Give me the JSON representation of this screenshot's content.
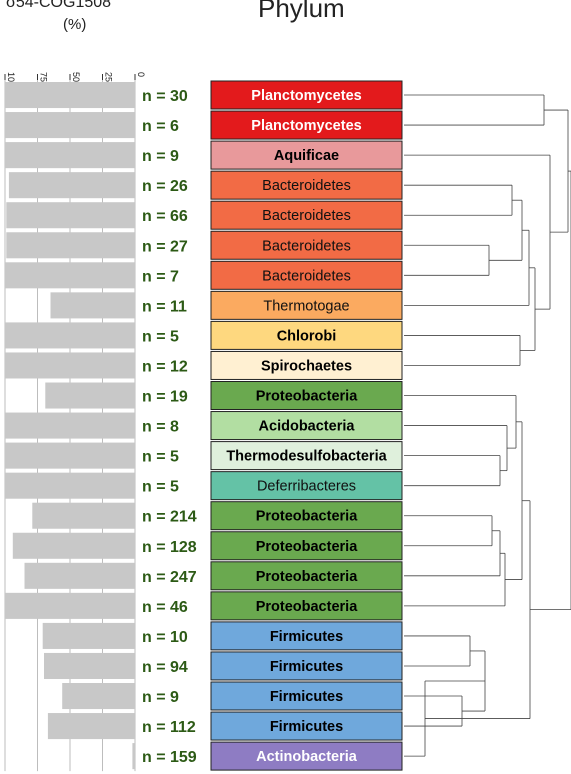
{
  "chart_data": {
    "type": "bar",
    "orientation": "horizontal",
    "direction": "right-to-left",
    "title": "Phylum",
    "axis_label_line1": "σ54-COG1508",
    "axis_label_line2": "(%)",
    "ticks": [
      "100",
      "75",
      "50",
      "25",
      "0"
    ],
    "tick_values": [
      100,
      75,
      50,
      25,
      0
    ],
    "xlim": [
      0,
      100
    ],
    "rows": [
      {
        "n": "n = 30",
        "phylum": "Planctomycetes",
        "value": 100,
        "color": "#e31a1c",
        "text_color": "#ffffff",
        "bold": true
      },
      {
        "n": "n = 6",
        "phylum": "Planctomycetes",
        "value": 100,
        "color": "#e31a1c",
        "text_color": "#ffffff",
        "bold": true
      },
      {
        "n": "n = 9",
        "phylum": "Aquificae",
        "value": 100,
        "color": "#e8999b",
        "text_color": "#000000",
        "bold": true
      },
      {
        "n": "n = 26",
        "phylum": "Bacteroidetes",
        "value": 97,
        "color": "#f26b45",
        "text_color": "#111111",
        "bold": false
      },
      {
        "n": "n = 66",
        "phylum": "Bacteroidetes",
        "value": 99,
        "color": "#f26b45",
        "text_color": "#111111",
        "bold": false
      },
      {
        "n": "n = 27",
        "phylum": "Bacteroidetes",
        "value": 99,
        "color": "#f26b45",
        "text_color": "#111111",
        "bold": false
      },
      {
        "n": "n = 7",
        "phylum": "Bacteroidetes",
        "value": 100,
        "color": "#f26b45",
        "text_color": "#111111",
        "bold": false
      },
      {
        "n": "n = 11",
        "phylum": "Thermotogae",
        "value": 65,
        "color": "#fbaa60",
        "text_color": "#111111",
        "bold": false
      },
      {
        "n": "n = 5",
        "phylum": "Chlorobi",
        "value": 100,
        "color": "#fed87f",
        "text_color": "#000000",
        "bold": true
      },
      {
        "n": "n = 12",
        "phylum": "Spirochaetes",
        "value": 100,
        "color": "#fff0d2",
        "text_color": "#000000",
        "bold": true
      },
      {
        "n": "n = 19",
        "phylum": "Proteobacteria",
        "value": 69,
        "color": "#6aa94f",
        "text_color": "#000000",
        "bold": true
      },
      {
        "n": "n = 8",
        "phylum": "Acidobacteria",
        "value": 100,
        "color": "#b2dea2",
        "text_color": "#000000",
        "bold": true
      },
      {
        "n": "n = 5",
        "phylum": "Thermodesulfobacteria",
        "value": 100,
        "color": "#dff0dc",
        "text_color": "#000000",
        "bold": true
      },
      {
        "n": "n = 5",
        "phylum": "Deferribacteres",
        "value": 100,
        "color": "#64c2a6",
        "text_color": "#111111",
        "bold": false
      },
      {
        "n": "n = 214",
        "phylum": "Proteobacteria",
        "value": 79,
        "color": "#6aa94f",
        "text_color": "#000000",
        "bold": true
      },
      {
        "n": "n = 128",
        "phylum": "Proteobacteria",
        "value": 94,
        "color": "#6aa94f",
        "text_color": "#000000",
        "bold": true
      },
      {
        "n": "n = 247",
        "phylum": "Proteobacteria",
        "value": 85,
        "color": "#6aa94f",
        "text_color": "#000000",
        "bold": true
      },
      {
        "n": "n = 46",
        "phylum": "Proteobacteria",
        "value": 100,
        "color": "#6aa94f",
        "text_color": "#000000",
        "bold": true
      },
      {
        "n": "n = 10",
        "phylum": "Firmicutes",
        "value": 71,
        "color": "#6fa8dc",
        "text_color": "#000000",
        "bold": true
      },
      {
        "n": "n = 94",
        "phylum": "Firmicutes",
        "value": 70,
        "color": "#6fa8dc",
        "text_color": "#000000",
        "bold": true
      },
      {
        "n": "n = 9",
        "phylum": "Firmicutes",
        "value": 56,
        "color": "#6fa8dc",
        "text_color": "#000000",
        "bold": true
      },
      {
        "n": "n = 112",
        "phylum": "Firmicutes",
        "value": 67,
        "color": "#6fa8dc",
        "text_color": "#000000",
        "bold": true
      },
      {
        "n": "n = 159",
        "phylum": "Actinobacteria",
        "value": 2,
        "color": "#8e7cc3",
        "text_color": "#ffffff",
        "bold": true
      }
    ],
    "bar_color": "#c8c8c8",
    "n_label_color": "#2c5a15",
    "grid": true,
    "dendrogram": true
  }
}
